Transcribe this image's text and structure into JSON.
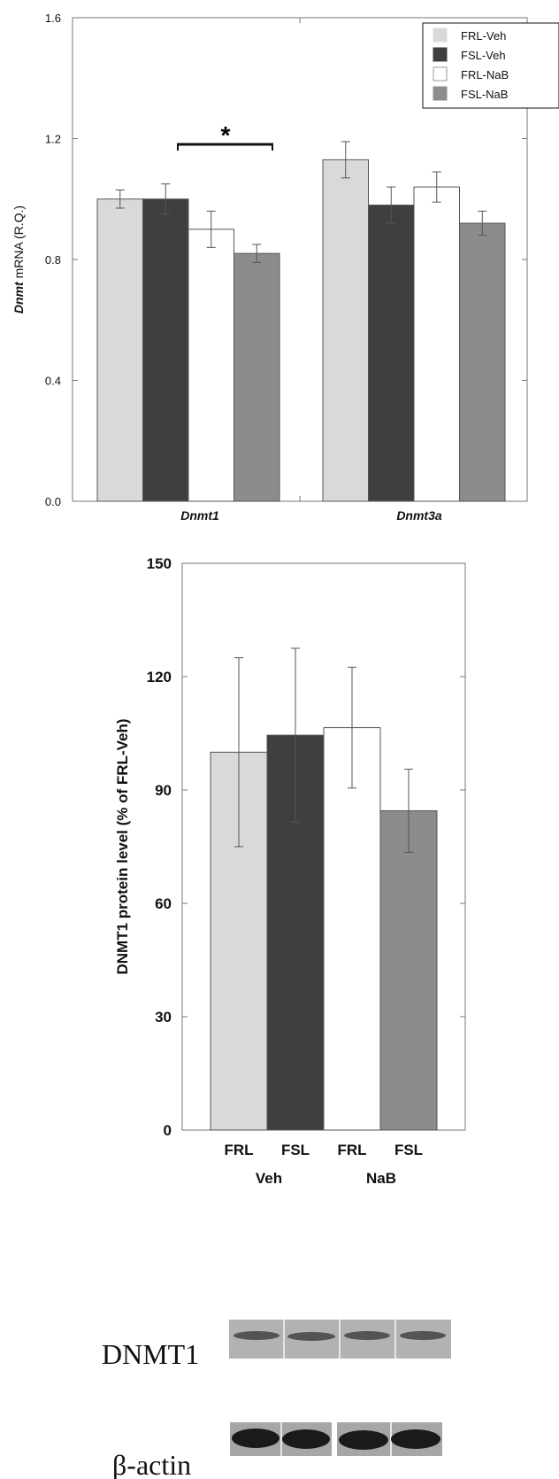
{
  "chart_data": [
    {
      "type": "bar",
      "title": "",
      "ylabel": {
        "italic_part": "Dnmt",
        "rest": " mRNA (R.Q.)"
      },
      "categories": [
        "Dnmt1",
        "Dnmt3a"
      ],
      "series": [
        {
          "name": "FRL-Veh",
          "values": [
            1.0,
            1.13
          ],
          "errors": [
            0.03,
            0.06
          ],
          "color": "#d9d9d9"
        },
        {
          "name": "FSL-Veh",
          "values": [
            1.0,
            0.98
          ],
          "errors": [
            0.05,
            0.06
          ],
          "color": "#3f3f3f"
        },
        {
          "name": "FRL-NaB",
          "values": [
            0.9,
            1.04
          ],
          "errors": [
            0.06,
            0.05
          ],
          "color": "#ffffff"
        },
        {
          "name": "FSL-NaB",
          "values": [
            0.82,
            0.92
          ],
          "errors": [
            0.03,
            0.04
          ],
          "color": "#8c8c8c"
        }
      ],
      "ylim": [
        0,
        1.6
      ],
      "yticks": [
        "0.0",
        "0.4",
        "0.8",
        "1.2",
        "1.6"
      ],
      "legend_position": "top-right",
      "significance": {
        "label": "*",
        "between": [
          "FSL-Veh",
          "FSL-NaB"
        ],
        "category": "Dnmt1"
      }
    },
    {
      "type": "bar",
      "title": "",
      "ylabel": "DNMT1 protein level (% of FRL-Veh)",
      "categories": [
        "FRL",
        "FSL",
        "FRL",
        "FSL"
      ],
      "group_labels": [
        "Veh",
        "NaB"
      ],
      "values": [
        100,
        104.5,
        106.5,
        84.5
      ],
      "errors": [
        25,
        23,
        16,
        11
      ],
      "colors": [
        "#d9d9d9",
        "#3f3f3f",
        "#ffffff",
        "#8c8c8c"
      ],
      "ylim": [
        0,
        150
      ],
      "yticks": [
        "0",
        "30",
        "60",
        "90",
        "120",
        "150"
      ]
    }
  ],
  "western_blot": {
    "labels": [
      "DNMT1",
      "β-actin"
    ]
  }
}
